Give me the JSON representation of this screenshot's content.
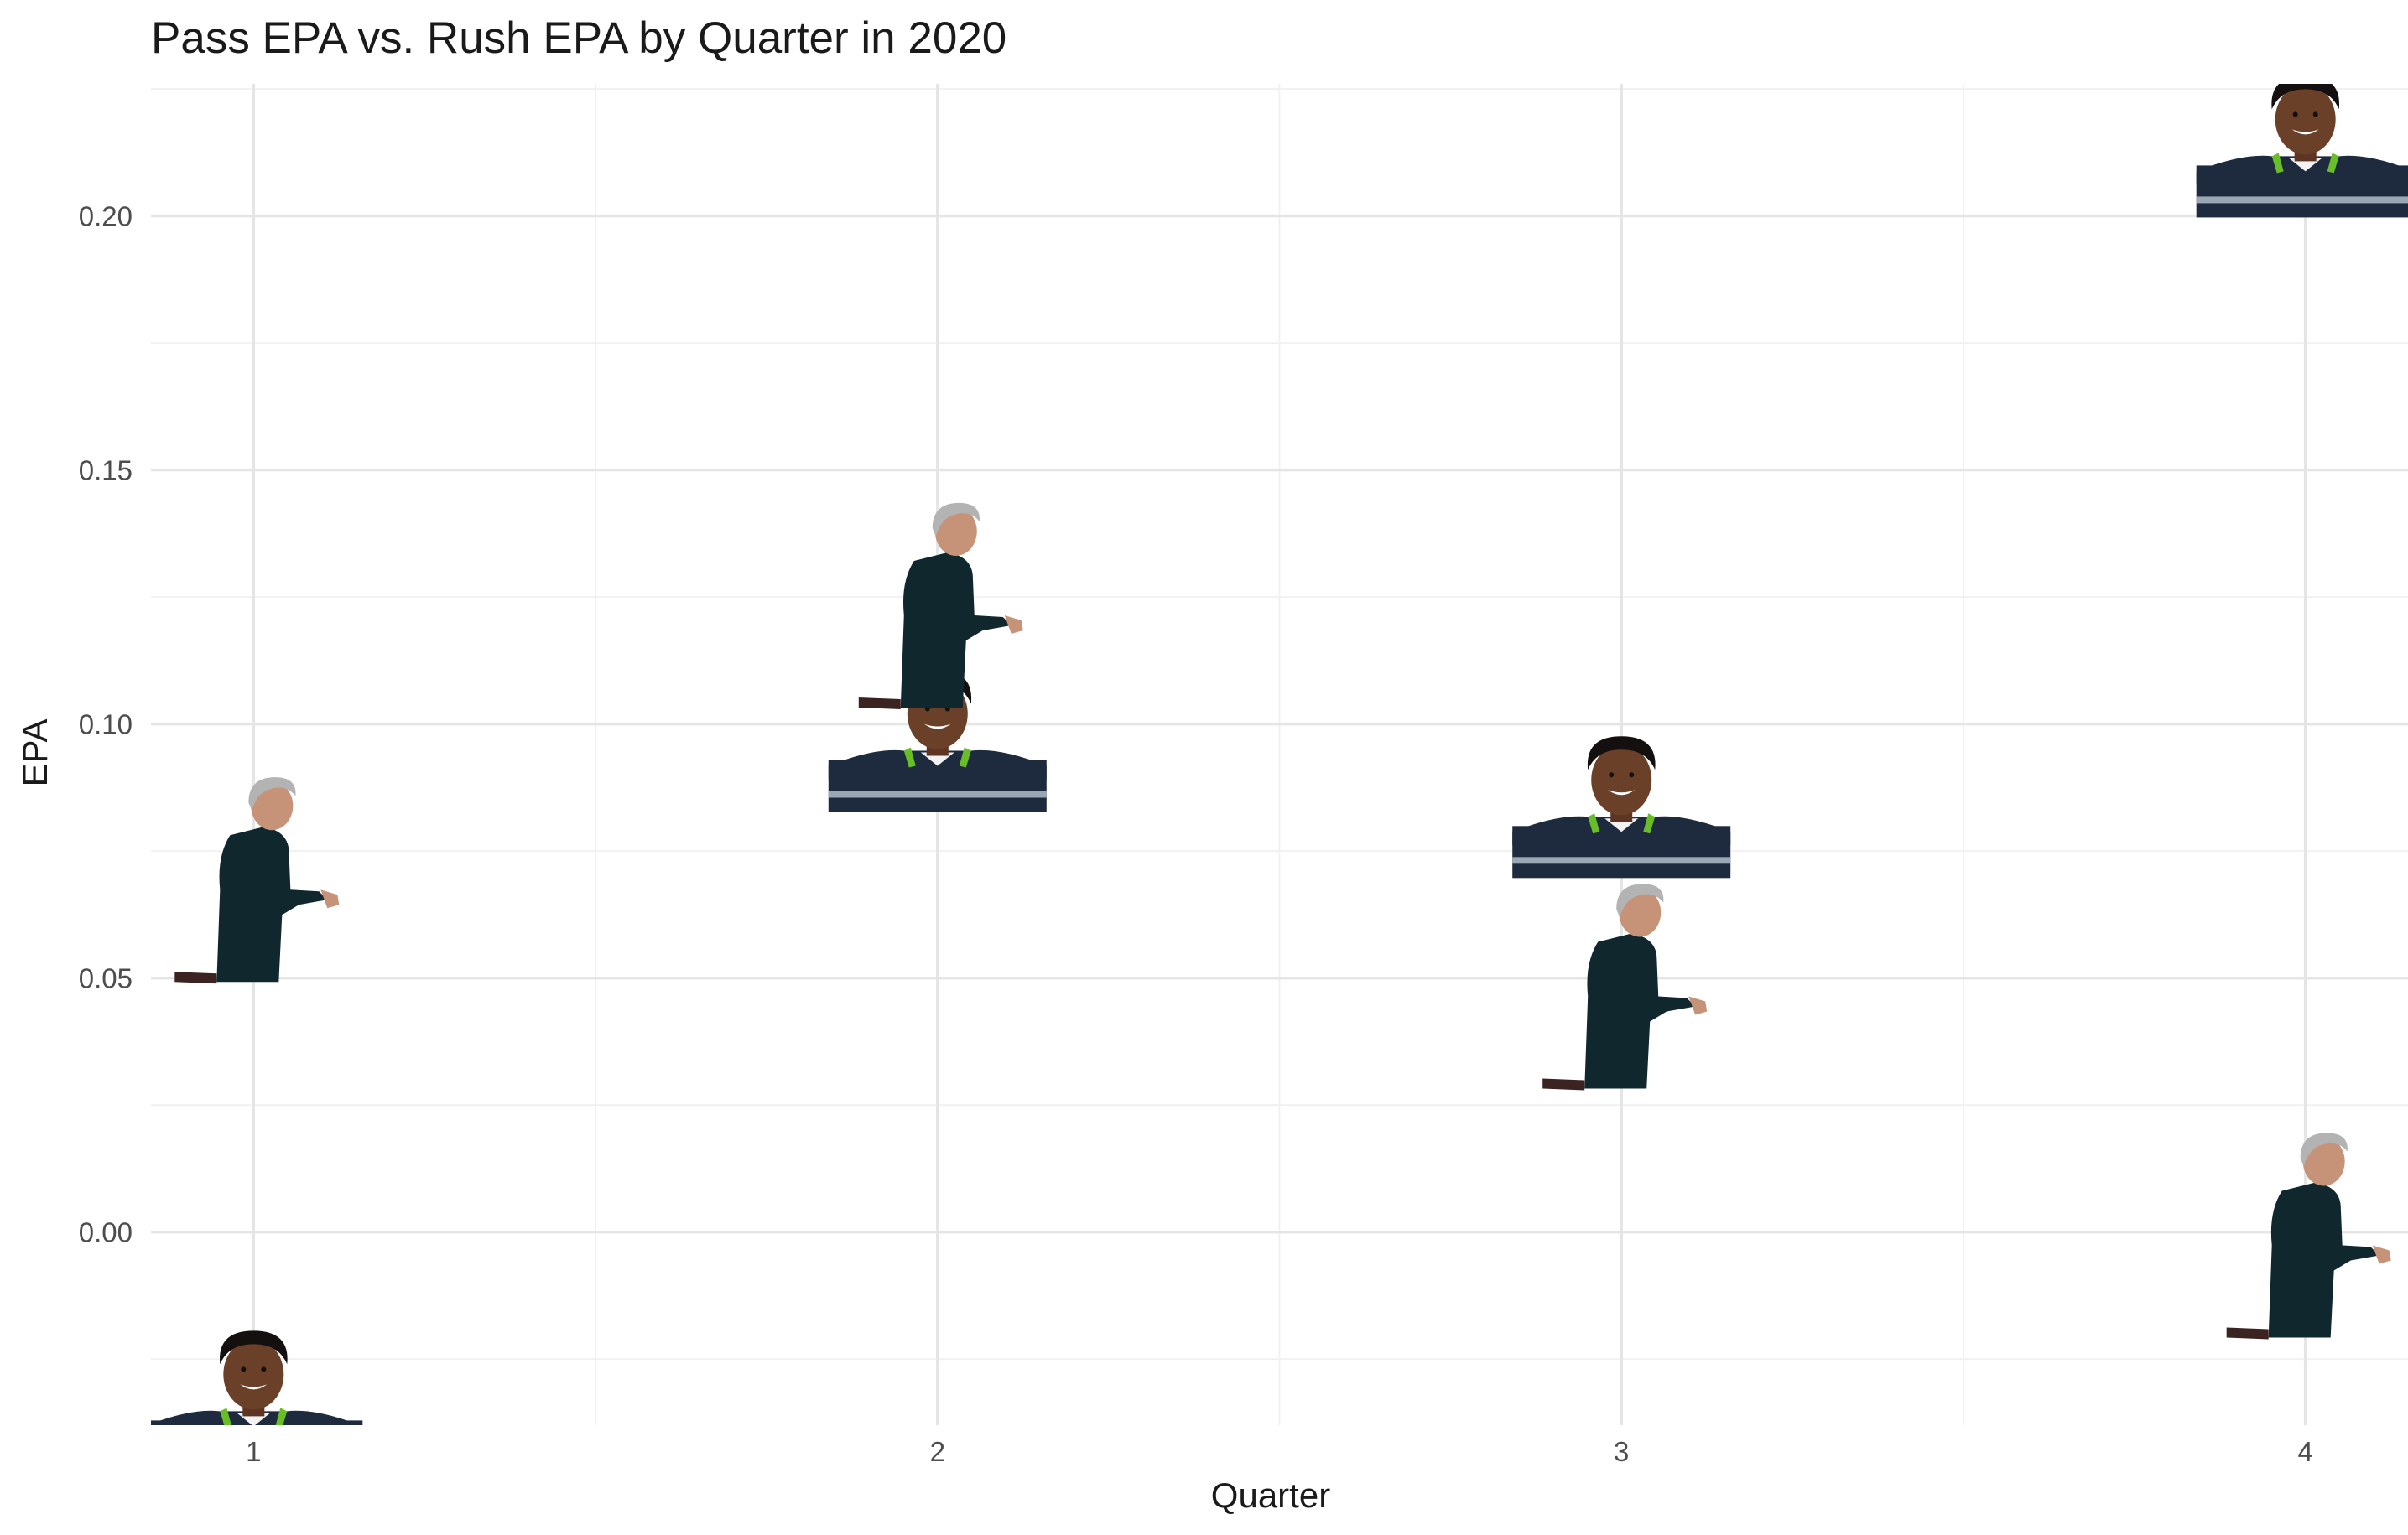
{
  "chart_data": {
    "type": "scatter",
    "title": "Pass EPA vs. Rush EPA by Quarter in 2020",
    "xlabel": "Quarter",
    "ylabel": "EPA",
    "x_ticks": [
      "1",
      "2",
      "3",
      "4"
    ],
    "y_ticks": [
      "0.00",
      "0.05",
      "0.10",
      "0.15",
      "0.20"
    ],
    "xlim": [
      0.85,
      4.15
    ],
    "ylim": [
      -0.038,
      0.226
    ],
    "grid": true,
    "legend": "none",
    "marker_style": "player-photo",
    "series": [
      {
        "marker": "qb-headshot",
        "points": [
          {
            "x": 1,
            "y": -0.028
          },
          {
            "x": 2,
            "y": 0.102
          },
          {
            "x": 3,
            "y": 0.089
          },
          {
            "x": 4,
            "y": 0.219
          }
        ]
      },
      {
        "marker": "coach-photo",
        "points": [
          {
            "x": 1,
            "y": 0.074
          },
          {
            "x": 2,
            "y": 0.128
          },
          {
            "x": 3,
            "y": 0.053
          },
          {
            "x": 4,
            "y": 0.004
          }
        ]
      }
    ],
    "colors": {
      "jersey": "#1e2a3e",
      "jersey_stripe": "#9aa7b4",
      "accent": "#69be28",
      "skin": "#6b4029",
      "hair": "#151010",
      "coach_shirt": "#10272d",
      "coach_hair": "#b3b3b3",
      "coach_skin": "#c79378"
    }
  }
}
